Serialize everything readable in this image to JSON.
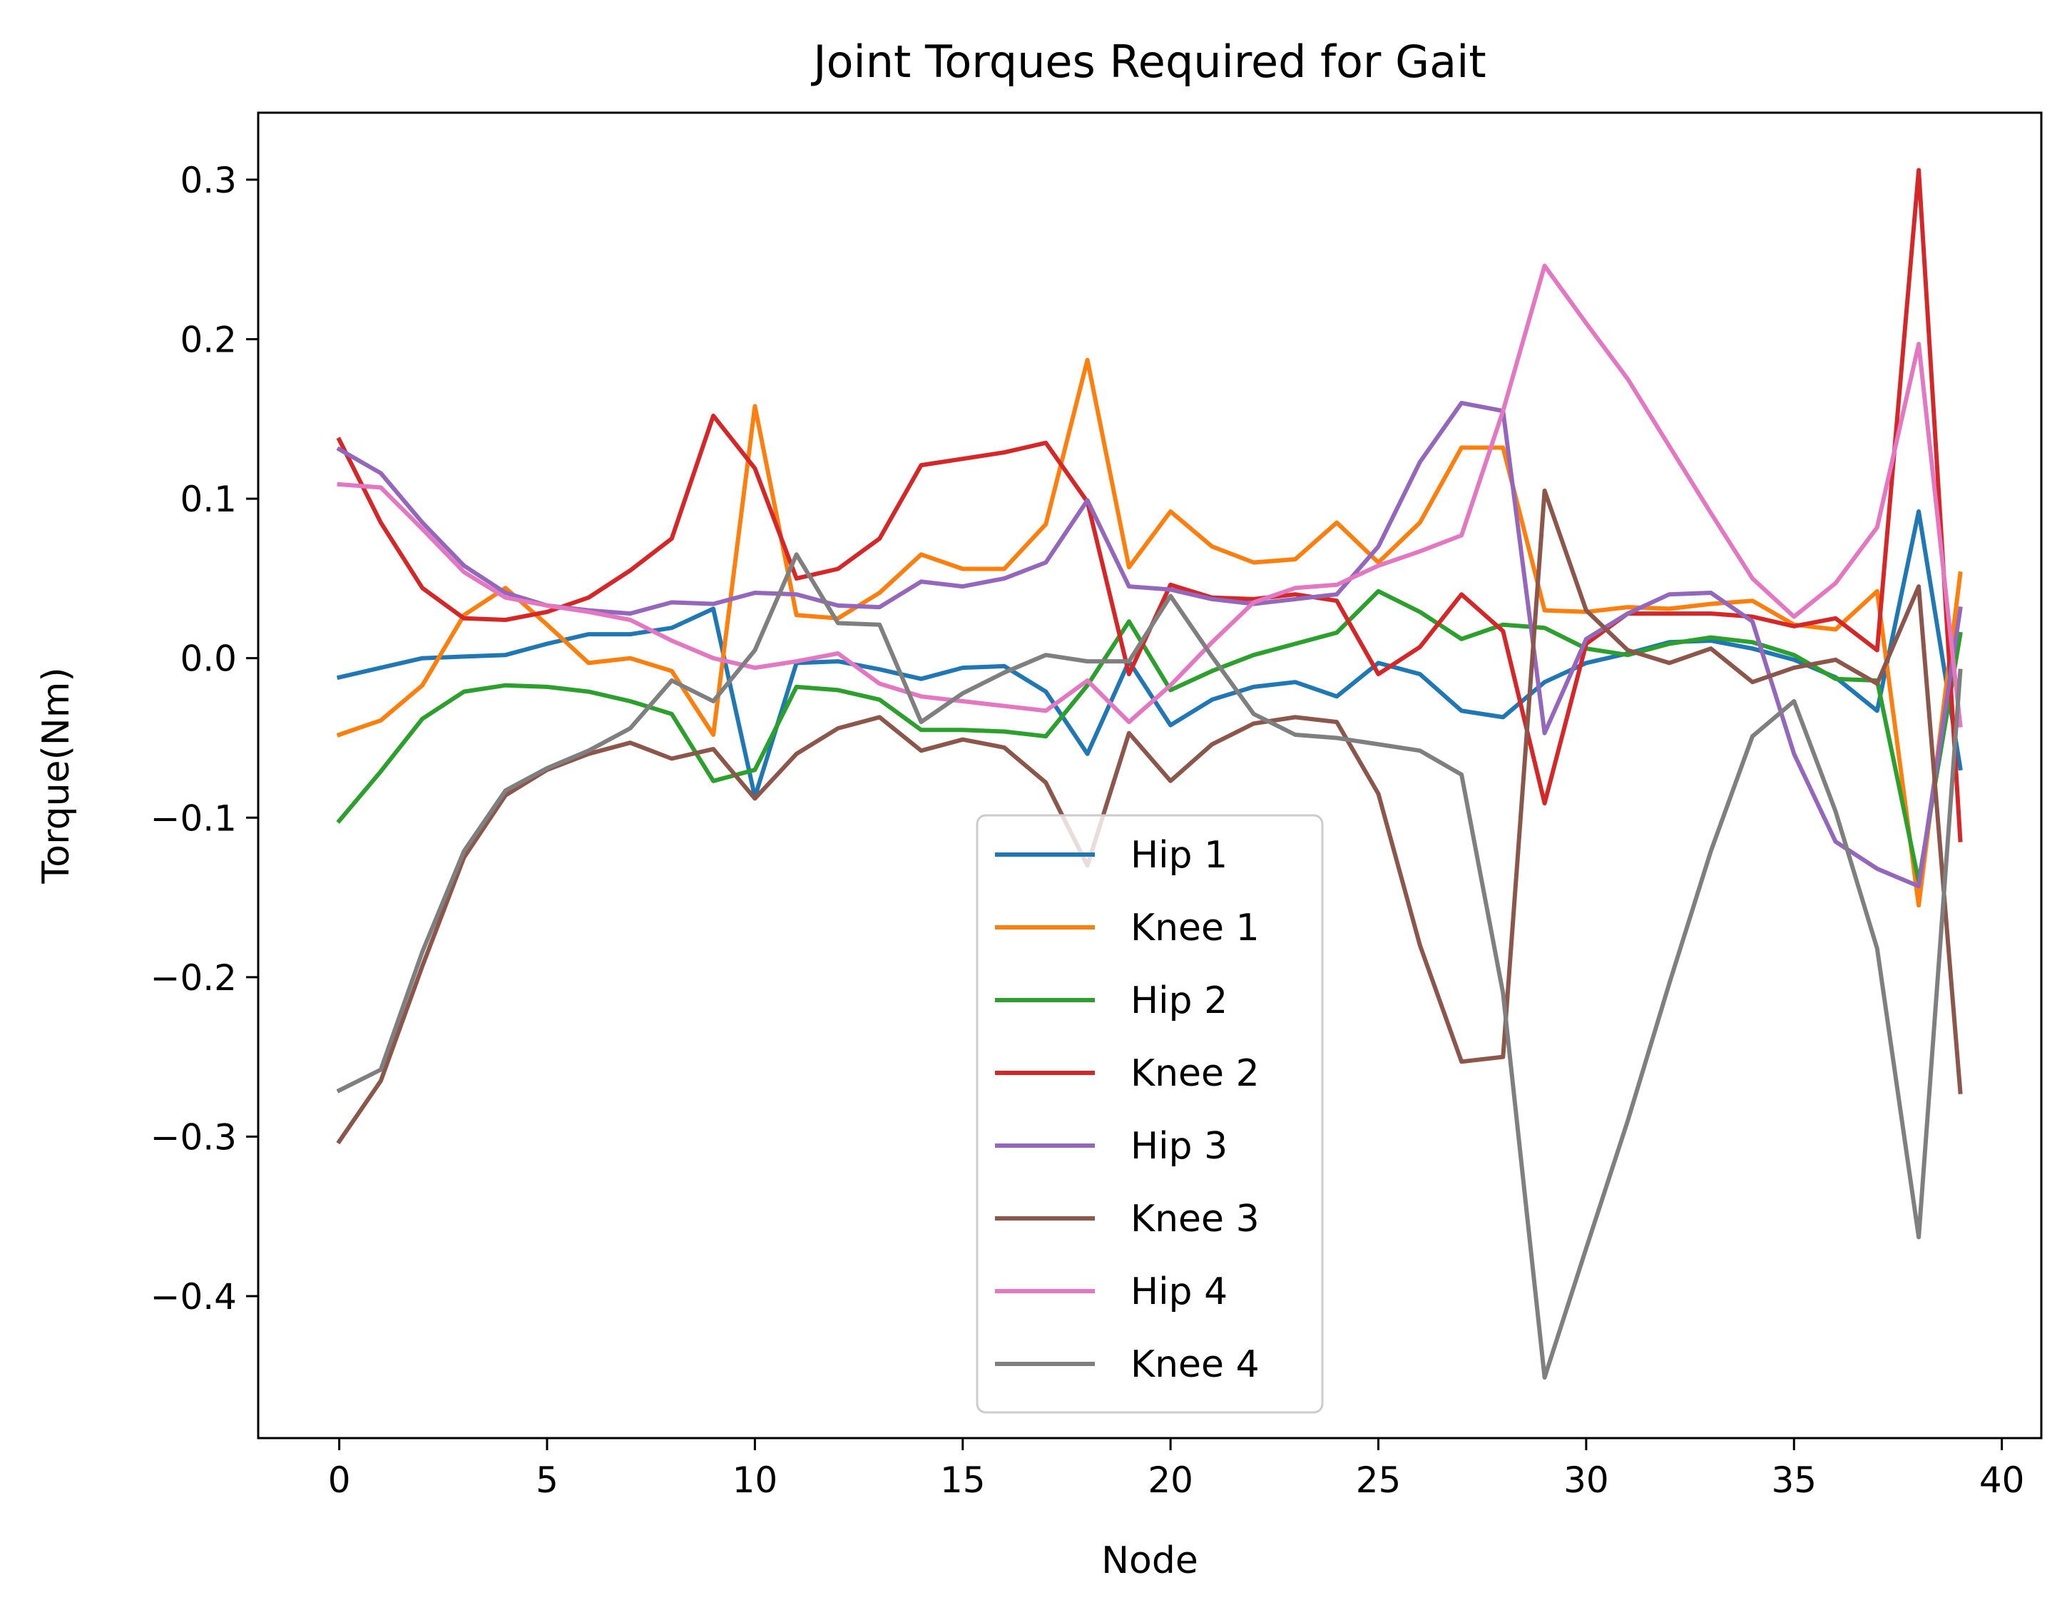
{
  "chart_data": {
    "type": "line",
    "title": "Joint Torques Required for Gait",
    "xlabel": "Node",
    "ylabel": "Torque(Nm)",
    "xlim": [
      -1.95,
      40.95
    ],
    "ylim": [
      -0.489,
      0.342
    ],
    "xticks": [
      0,
      5,
      10,
      15,
      20,
      25,
      30,
      35,
      40
    ],
    "xtick_labels": [
      "0",
      "5",
      "10",
      "15",
      "20",
      "25",
      "30",
      "35",
      "40"
    ],
    "yticks": [
      0.3,
      0.2,
      0.1,
      0.0,
      -0.1,
      -0.2,
      -0.3,
      -0.4
    ],
    "ytick_labels": [
      "0.3",
      "0.2",
      "0.1",
      "0.0",
      "−0.1",
      "−0.2",
      "−0.3",
      "−0.4"
    ],
    "grid": false,
    "legend_position": "lower-center",
    "x": [
      0,
      1,
      2,
      3,
      4,
      5,
      6,
      7,
      8,
      9,
      10,
      11,
      12,
      13,
      14,
      15,
      16,
      17,
      18,
      19,
      20,
      21,
      22,
      23,
      24,
      25,
      26,
      27,
      28,
      29,
      30,
      31,
      32,
      33,
      34,
      35,
      36,
      37,
      38,
      39
    ],
    "series": [
      {
        "name": "Hip 1",
        "color": "#1f77b4",
        "values": [
          -0.012,
          -0.006,
          0.0,
          0.001,
          0.002,
          0.009,
          0.015,
          0.015,
          0.019,
          0.031,
          -0.087,
          -0.003,
          -0.002,
          -0.007,
          -0.013,
          -0.006,
          -0.005,
          -0.021,
          -0.06,
          -0.002,
          -0.042,
          -0.026,
          -0.018,
          -0.015,
          -0.024,
          -0.003,
          -0.01,
          -0.033,
          -0.037,
          -0.015,
          -0.003,
          0.003,
          0.01,
          0.011,
          0.006,
          -0.001,
          -0.012,
          -0.033,
          0.092,
          -0.069
        ]
      },
      {
        "name": "Knee 1",
        "color": "#ff7f0e",
        "values": [
          -0.048,
          -0.039,
          -0.017,
          0.027,
          0.044,
          0.021,
          -0.003,
          0.0,
          -0.008,
          -0.048,
          0.158,
          0.027,
          0.025,
          0.041,
          0.065,
          0.056,
          0.056,
          0.084,
          0.187,
          0.057,
          0.092,
          0.07,
          0.06,
          0.062,
          0.085,
          0.06,
          0.085,
          0.132,
          0.132,
          0.03,
          0.029,
          0.032,
          0.031,
          0.034,
          0.036,
          0.021,
          0.018,
          0.042,
          -0.155,
          0.053
        ]
      },
      {
        "name": "Hip 2",
        "color": "#2ca02c",
        "values": [
          -0.102,
          -0.071,
          -0.038,
          -0.021,
          -0.017,
          -0.018,
          -0.021,
          -0.027,
          -0.035,
          -0.077,
          -0.07,
          -0.018,
          -0.02,
          -0.026,
          -0.045,
          -0.045,
          -0.046,
          -0.049,
          -0.017,
          0.023,
          -0.02,
          -0.008,
          0.002,
          0.009,
          0.016,
          0.042,
          0.029,
          0.012,
          0.021,
          0.019,
          0.006,
          0.002,
          0.009,
          0.013,
          0.01,
          0.002,
          -0.013,
          -0.014,
          -0.14,
          0.015
        ]
      },
      {
        "name": "Knee 2",
        "color": "#d62728",
        "values": [
          0.137,
          0.085,
          0.044,
          0.025,
          0.024,
          0.029,
          0.038,
          0.055,
          0.075,
          0.152,
          0.119,
          0.05,
          0.056,
          0.075,
          0.121,
          0.125,
          0.129,
          0.135,
          0.098,
          -0.01,
          0.046,
          0.038,
          0.037,
          0.04,
          0.036,
          -0.01,
          0.007,
          0.04,
          0.017,
          -0.091,
          0.009,
          0.028,
          0.028,
          0.028,
          0.026,
          0.02,
          0.025,
          0.005,
          0.306,
          -0.114
        ]
      },
      {
        "name": "Hip 3",
        "color": "#9467bd",
        "values": [
          0.131,
          0.116,
          0.085,
          0.058,
          0.041,
          0.033,
          0.03,
          0.028,
          0.035,
          0.034,
          0.041,
          0.04,
          0.033,
          0.032,
          0.048,
          0.045,
          0.05,
          0.06,
          0.099,
          0.045,
          0.043,
          0.037,
          0.034,
          0.037,
          0.04,
          0.07,
          0.123,
          0.16,
          0.155,
          -0.047,
          0.012,
          0.028,
          0.04,
          0.041,
          0.023,
          -0.06,
          -0.115,
          -0.132,
          -0.143,
          0.031
        ]
      },
      {
        "name": "Knee 3",
        "color": "#8c564b",
        "values": [
          -0.303,
          -0.265,
          -0.193,
          -0.125,
          -0.086,
          -0.07,
          -0.06,
          -0.053,
          -0.063,
          -0.057,
          -0.088,
          -0.06,
          -0.044,
          -0.037,
          -0.058,
          -0.051,
          -0.056,
          -0.078,
          -0.13,
          -0.047,
          -0.077,
          -0.054,
          -0.041,
          -0.037,
          -0.04,
          -0.085,
          -0.18,
          -0.253,
          -0.25,
          0.105,
          0.03,
          0.005,
          -0.003,
          0.006,
          -0.015,
          -0.006,
          -0.001,
          -0.016,
          0.045,
          -0.272
        ]
      },
      {
        "name": "Hip 4",
        "color": "#e377c2",
        "values": [
          0.109,
          0.107,
          0.081,
          0.054,
          0.038,
          0.033,
          0.029,
          0.024,
          0.011,
          0.0,
          -0.006,
          -0.002,
          0.003,
          -0.016,
          -0.024,
          -0.027,
          -0.03,
          -0.033,
          -0.014,
          -0.04,
          -0.017,
          0.01,
          0.035,
          0.044,
          0.046,
          0.058,
          0.067,
          0.077,
          0.155,
          0.246,
          0.21,
          0.175,
          0.133,
          0.091,
          0.05,
          0.026,
          0.047,
          0.082,
          0.197,
          -0.042
        ]
      },
      {
        "name": "Knee 4",
        "color": "#7f7f7f",
        "values": [
          -0.271,
          -0.258,
          -0.184,
          -0.121,
          -0.083,
          -0.069,
          -0.058,
          -0.044,
          -0.014,
          -0.027,
          0.005,
          0.065,
          0.022,
          0.021,
          -0.04,
          -0.022,
          -0.009,
          0.002,
          -0.002,
          -0.002,
          0.039,
          0.001,
          -0.035,
          -0.048,
          -0.05,
          -0.054,
          -0.058,
          -0.073,
          -0.21,
          -0.451,
          -0.37,
          -0.29,
          -0.204,
          -0.121,
          -0.049,
          -0.027,
          -0.096,
          -0.182,
          -0.363,
          -0.008
        ]
      }
    ]
  }
}
